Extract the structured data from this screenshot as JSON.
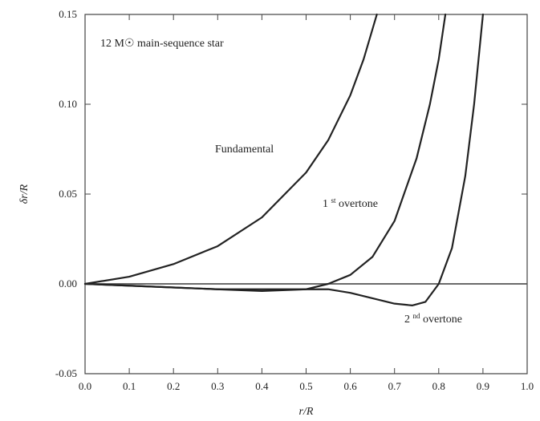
{
  "chart_data": {
    "type": "line",
    "title": "",
    "annotation_box": {
      "text": "12 M☉ main-sequence star"
    },
    "xlabel": "r/R",
    "ylabel": "δr/R",
    "xlim": [
      0.0,
      1.0
    ],
    "ylim": [
      -0.05,
      0.15
    ],
    "x_ticks": [
      0.0,
      0.1,
      0.2,
      0.3,
      0.4,
      0.5,
      0.6,
      0.7,
      0.8,
      0.9,
      1.0
    ],
    "y_ticks": [
      -0.05,
      0.0,
      0.05,
      0.1,
      0.15
    ],
    "x_tick_labels": [
      "0.0",
      "0.1",
      "0.2",
      "0.3",
      "0.4",
      "0.5",
      "0.6",
      "0.7",
      "0.8",
      "0.9",
      "1.0"
    ],
    "y_tick_labels": [
      "-0.05",
      "0.00",
      "0.05",
      "0.10",
      "0.15"
    ],
    "grid": false,
    "colors": {
      "line": "#222222",
      "axis": "#444444",
      "zero_line": "#555555"
    },
    "series": [
      {
        "name": "Fundamental",
        "label": "Fundamental",
        "x": [
          0.0,
          0.1,
          0.2,
          0.3,
          0.4,
          0.5,
          0.55,
          0.6,
          0.63,
          0.66
        ],
        "y": [
          0.0,
          0.004,
          0.011,
          0.021,
          0.037,
          0.062,
          0.08,
          0.105,
          0.125,
          0.15
        ]
      },
      {
        "name": "1st overtone",
        "label_main": "1",
        "label_sup": "st",
        "label_tail": " overtone",
        "x": [
          0.0,
          0.1,
          0.2,
          0.3,
          0.4,
          0.5,
          0.55,
          0.6,
          0.65,
          0.7,
          0.75,
          0.78,
          0.8,
          0.815
        ],
        "y": [
          0.0,
          -0.001,
          -0.002,
          -0.003,
          -0.004,
          -0.003,
          0.0,
          0.005,
          0.015,
          0.035,
          0.07,
          0.1,
          0.125,
          0.15
        ]
      },
      {
        "name": "2nd overtone",
        "label_main": "2",
        "label_sup": "nd",
        "label_tail": " overtone",
        "x": [
          0.0,
          0.1,
          0.2,
          0.3,
          0.4,
          0.5,
          0.55,
          0.6,
          0.65,
          0.7,
          0.74,
          0.77,
          0.8,
          0.83,
          0.86,
          0.88,
          0.9
        ],
        "y": [
          0.0,
          -0.001,
          -0.002,
          -0.003,
          -0.003,
          -0.003,
          -0.003,
          -0.005,
          -0.008,
          -0.011,
          -0.012,
          -0.01,
          0.0,
          0.02,
          0.06,
          0.1,
          0.15
        ]
      }
    ]
  }
}
